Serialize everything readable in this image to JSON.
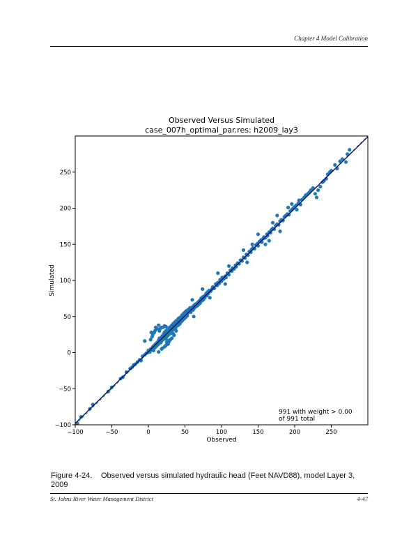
{
  "page": {
    "header": "Chapter 4 Model Calibration",
    "caption_number": "Figure 4-24.",
    "caption_text": "Observed versus simulated hydraulic head (Feet NAVD88), model Layer 3, 2009",
    "footer_left": "St. Johns River Water Management District",
    "footer_right": "4-47"
  },
  "chart_data": {
    "type": "scatter",
    "title": "Observed Versus Simulated",
    "subtitle": "case_007h_optimal_par.res: h2009_lay3",
    "xlabel": "Observed",
    "ylabel": "Simulated",
    "xlim": [
      -100,
      300
    ],
    "ylim": [
      -100,
      300
    ],
    "xticks": [
      -100,
      -50,
      0,
      50,
      100,
      150,
      200,
      250
    ],
    "yticks": [
      -100,
      -50,
      0,
      50,
      100,
      150,
      200,
      250
    ],
    "xtick_labels": [
      "−100",
      "−50",
      "0",
      "50",
      "100",
      "150",
      "200",
      "250"
    ],
    "ytick_labels": [
      "−100",
      "−50",
      "0",
      "50",
      "100",
      "150",
      "200",
      "250"
    ],
    "annotation_line1": "991 with weight > 0.00",
    "annotation_line2": "of 991 total",
    "grid": false,
    "point_color": "#1f77b4",
    "line_color": "#000080",
    "reference_line_color": "#2ca02c",
    "fit_line": {
      "x": [
        -100,
        300
      ],
      "y": [
        -98,
        299
      ]
    },
    "reference_line": {
      "x": [
        -100,
        300
      ],
      "y": [
        -100,
        300
      ]
    },
    "points": [
      [
        -97,
        -98
      ],
      [
        -92,
        -89
      ],
      [
        -80,
        -78
      ],
      [
        -76,
        -72
      ],
      [
        -55,
        -54
      ],
      [
        -50,
        -48
      ],
      [
        -38,
        -36
      ],
      [
        -35,
        -34
      ],
      [
        -30,
        -27
      ],
      [
        -25,
        -22
      ],
      [
        -22,
        -20
      ],
      [
        -20,
        -17
      ],
      [
        -18,
        -16
      ],
      [
        -15,
        -13
      ],
      [
        -12,
        -10
      ],
      [
        -10,
        -11
      ],
      [
        -8,
        -5
      ],
      [
        -5,
        -3
      ],
      [
        -3,
        -1
      ],
      [
        -1,
        0
      ],
      [
        0,
        3
      ],
      [
        2,
        1
      ],
      [
        3,
        5
      ],
      [
        5,
        4
      ],
      [
        6,
        8
      ],
      [
        7,
        3
      ],
      [
        8,
        10
      ],
      [
        9,
        7
      ],
      [
        10,
        12
      ],
      [
        11,
        9
      ],
      [
        12,
        14
      ],
      [
        13,
        11
      ],
      [
        14,
        17
      ],
      [
        15,
        13
      ],
      [
        15,
        20
      ],
      [
        16,
        18
      ],
      [
        17,
        14
      ],
      [
        18,
        21
      ],
      [
        18,
        16
      ],
      [
        19,
        23
      ],
      [
        20,
        18
      ],
      [
        20,
        24
      ],
      [
        21,
        26
      ],
      [
        21,
        20
      ],
      [
        22,
        28
      ],
      [
        22,
        22
      ],
      [
        23,
        25
      ],
      [
        23,
        19
      ],
      [
        24,
        30
      ],
      [
        24,
        27
      ],
      [
        25,
        22
      ],
      [
        25,
        29
      ],
      [
        26,
        32
      ],
      [
        26,
        25
      ],
      [
        27,
        30
      ],
      [
        27,
        24
      ],
      [
        28,
        33
      ],
      [
        28,
        28
      ],
      [
        29,
        26
      ],
      [
        29,
        35
      ],
      [
        30,
        31
      ],
      [
        30,
        27
      ],
      [
        31,
        36
      ],
      [
        31,
        33
      ],
      [
        32,
        29
      ],
      [
        32,
        38
      ],
      [
        33,
        35
      ],
      [
        33,
        31
      ],
      [
        34,
        37
      ],
      [
        34,
        40
      ],
      [
        35,
        33
      ],
      [
        35,
        38
      ],
      [
        36,
        42
      ],
      [
        36,
        36
      ],
      [
        37,
        39
      ],
      [
        37,
        34
      ],
      [
        38,
        41
      ],
      [
        38,
        44
      ],
      [
        39,
        37
      ],
      [
        39,
        43
      ],
      [
        40,
        40
      ],
      [
        40,
        45
      ],
      [
        41,
        38
      ],
      [
        41,
        47
      ],
      [
        42,
        42
      ],
      [
        42,
        48
      ],
      [
        43,
        45
      ],
      [
        43,
        40
      ],
      [
        44,
        49
      ],
      [
        44,
        46
      ],
      [
        45,
        43
      ],
      [
        45,
        50
      ],
      [
        46,
        48
      ],
      [
        46,
        52
      ],
      [
        47,
        45
      ],
      [
        47,
        51
      ],
      [
        48,
        49
      ],
      [
        48,
        54
      ],
      [
        49,
        47
      ],
      [
        49,
        53
      ],
      [
        50,
        51
      ],
      [
        50,
        56
      ],
      [
        51,
        49
      ],
      [
        51,
        55
      ],
      [
        52,
        53
      ],
      [
        52,
        58
      ],
      [
        53,
        51
      ],
      [
        53,
        57
      ],
      [
        54,
        55
      ],
      [
        55,
        60
      ],
      [
        5,
        22
      ],
      [
        8,
        28
      ],
      [
        10,
        35
      ],
      [
        12,
        33
      ],
      [
        14,
        38
      ],
      [
        3,
        18
      ],
      [
        6,
        25
      ],
      [
        16,
        33
      ],
      [
        18,
        35
      ],
      [
        9,
        30
      ],
      [
        20,
        35
      ],
      [
        22,
        37
      ],
      [
        24,
        36
      ],
      [
        4,
        28
      ],
      [
        15,
        30
      ],
      [
        25,
        14
      ],
      [
        28,
        15
      ],
      [
        30,
        18
      ],
      [
        32,
        20
      ],
      [
        35,
        24
      ],
      [
        27,
        12
      ],
      [
        22,
        8
      ],
      [
        18,
        5
      ],
      [
        34,
        26
      ],
      [
        38,
        30
      ],
      [
        14,
        1
      ],
      [
        19,
        6
      ],
      [
        24,
        10
      ],
      [
        -5,
        16
      ],
      [
        26,
        17
      ],
      [
        56,
        58
      ],
      [
        57,
        62
      ],
      [
        58,
        56
      ],
      [
        59,
        61
      ],
      [
        60,
        63
      ],
      [
        61,
        59
      ],
      [
        62,
        65
      ],
      [
        63,
        62
      ],
      [
        64,
        67
      ],
      [
        65,
        64
      ],
      [
        66,
        68
      ],
      [
        67,
        65
      ],
      [
        68,
        70
      ],
      [
        69,
        67
      ],
      [
        70,
        72
      ],
      [
        71,
        69
      ],
      [
        72,
        75
      ],
      [
        73,
        72
      ],
      [
        74,
        77
      ],
      [
        75,
        73
      ],
      [
        76,
        78
      ],
      [
        77,
        76
      ],
      [
        78,
        80
      ],
      [
        79,
        82
      ],
      [
        80,
        79
      ],
      [
        81,
        84
      ],
      [
        82,
        82
      ],
      [
        83,
        86
      ],
      [
        85,
        85
      ],
      [
        87,
        88
      ],
      [
        88,
        91
      ],
      [
        90,
        89
      ],
      [
        92,
        95
      ],
      [
        94,
        93
      ],
      [
        95,
        97
      ],
      [
        97,
        96
      ],
      [
        98,
        101
      ],
      [
        100,
        99
      ],
      [
        101,
        104
      ],
      [
        103,
        102
      ],
      [
        105,
        106
      ],
      [
        106,
        104
      ],
      [
        108,
        110
      ],
      [
        110,
        108
      ],
      [
        112,
        114
      ],
      [
        114,
        113
      ],
      [
        115,
        117
      ],
      [
        117,
        116
      ],
      [
        119,
        121
      ],
      [
        120,
        119
      ],
      [
        122,
        124
      ],
      [
        124,
        123
      ],
      [
        126,
        128
      ],
      [
        128,
        127
      ],
      [
        130,
        132
      ],
      [
        132,
        131
      ],
      [
        134,
        136
      ],
      [
        136,
        135
      ],
      [
        138,
        140
      ],
      [
        140,
        139
      ],
      [
        141,
        143
      ],
      [
        143,
        145
      ],
      [
        145,
        144
      ],
      [
        147,
        149
      ],
      [
        149,
        151
      ],
      [
        150,
        148
      ],
      [
        152,
        154
      ],
      [
        154,
        156
      ],
      [
        155,
        153
      ],
      [
        157,
        158
      ],
      [
        158,
        160
      ],
      [
        160,
        159
      ],
      [
        162,
        164
      ],
      [
        163,
        162
      ],
      [
        165,
        167
      ],
      [
        167,
        166
      ],
      [
        168,
        170
      ],
      [
        170,
        172
      ],
      [
        172,
        171
      ],
      [
        174,
        176
      ],
      [
        176,
        178
      ],
      [
        178,
        177
      ],
      [
        180,
        182
      ],
      [
        182,
        184
      ],
      [
        184,
        183
      ],
      [
        186,
        188
      ],
      [
        188,
        190
      ],
      [
        190,
        192
      ],
      [
        192,
        191
      ],
      [
        194,
        196
      ],
      [
        196,
        198
      ],
      [
        198,
        200
      ],
      [
        200,
        202
      ],
      [
        202,
        204
      ],
      [
        205,
        207
      ],
      [
        208,
        205
      ],
      [
        210,
        212
      ],
      [
        213,
        215
      ],
      [
        215,
        218
      ],
      [
        218,
        220
      ],
      [
        220,
        222
      ],
      [
        222,
        225
      ],
      [
        225,
        228
      ],
      [
        228,
        220
      ],
      [
        230,
        215
      ],
      [
        232,
        225
      ],
      [
        235,
        230
      ],
      [
        238,
        236
      ],
      [
        240,
        238
      ],
      [
        243,
        241
      ],
      [
        245,
        247
      ],
      [
        248,
        250
      ],
      [
        250,
        252
      ],
      [
        255,
        260
      ],
      [
        258,
        255
      ],
      [
        262,
        265
      ],
      [
        265,
        268
      ],
      [
        270,
        264
      ],
      [
        272,
        275
      ],
      [
        275,
        281
      ],
      [
        150,
        164
      ],
      [
        160,
        150
      ],
      [
        180,
        168
      ],
      [
        176,
        190
      ],
      [
        105,
        95
      ],
      [
        95,
        110
      ],
      [
        84,
        76
      ],
      [
        74,
        88
      ],
      [
        60,
        73
      ],
      [
        62,
        50
      ],
      [
        130,
        142
      ],
      [
        135,
        125
      ],
      [
        191,
        201
      ],
      [
        196,
        206
      ],
      [
        203,
        198
      ],
      [
        206,
        211
      ],
      [
        170,
        180
      ],
      [
        165,
        155
      ],
      [
        142,
        150
      ],
      [
        110,
        120
      ]
    ]
  }
}
